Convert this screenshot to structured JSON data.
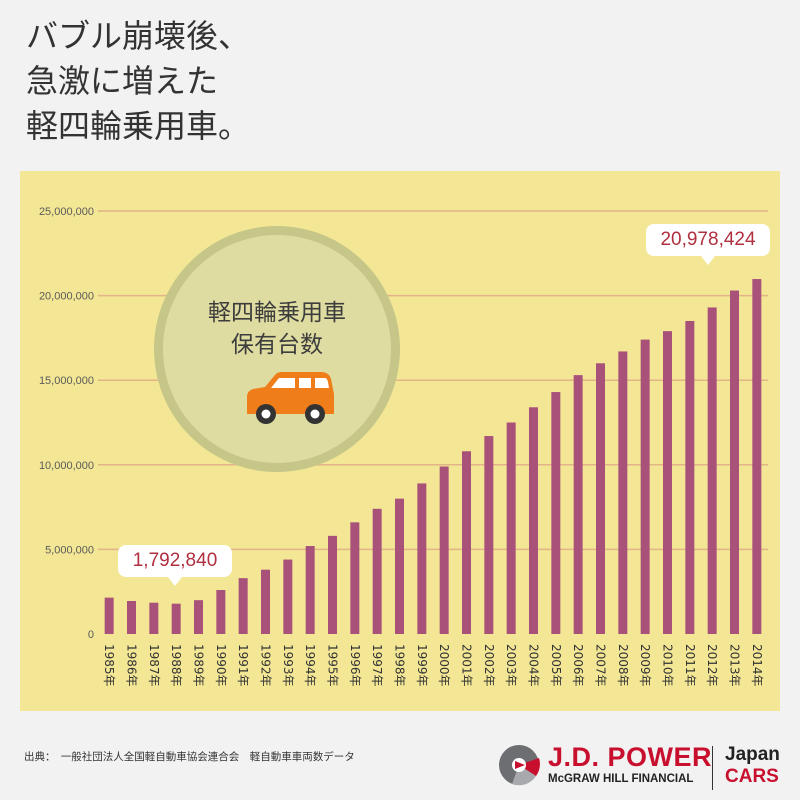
{
  "headline": {
    "line1": "バブル崩壊後、",
    "line2": "急激に増えた",
    "line3": "軽四輪乗用車。"
  },
  "badge": {
    "line1": "軽四輪乗用車",
    "line2": "保有台数",
    "icon": "car-icon",
    "car_color": "#ef7d1a"
  },
  "callouts": {
    "first": "1,792,840",
    "last": "20,978,424"
  },
  "source": "出典：　一般社団法人全国軽自動車協会連合会　軽自動車車両数データ",
  "brand": {
    "name": "J.D. POWER",
    "sub": "McGRAW HILL FINANCIAL",
    "japan": "Japan",
    "cars": "CARS",
    "color": "#c8102e"
  },
  "chart_data": {
    "type": "bar",
    "bar_color": "#a8527a",
    "grid": true,
    "ylim": [
      0,
      25000000
    ],
    "yticks": [
      0,
      5000000,
      10000000,
      15000000,
      20000000,
      25000000
    ],
    "ytick_labels": [
      "0",
      "5,000,000",
      "10,000,000",
      "15,000,000",
      "20,000,000",
      "25,000,000"
    ],
    "categories": [
      "1985年",
      "1986年",
      "1987年",
      "1988年",
      "1989年",
      "1990年",
      "1991年",
      "1992年",
      "1993年",
      "1994年",
      "1995年",
      "1996年",
      "1997年",
      "1998年",
      "1999年",
      "2000年",
      "2001年",
      "2002年",
      "2003年",
      "2004年",
      "2005年",
      "2006年",
      "2007年",
      "2008年",
      "2009年",
      "2010年",
      "2011年",
      "2012年",
      "2013年",
      "2014年"
    ],
    "values": [
      2150000,
      1950000,
      1850000,
      1792840,
      2000000,
      2600000,
      3300000,
      3800000,
      4400000,
      5200000,
      5800000,
      6600000,
      7400000,
      8000000,
      8900000,
      9900000,
      10800000,
      11700000,
      12500000,
      13400000,
      14300000,
      15300000,
      16000000,
      16700000,
      17400000,
      17900000,
      18500000,
      19300000,
      20300000,
      20978424
    ]
  }
}
